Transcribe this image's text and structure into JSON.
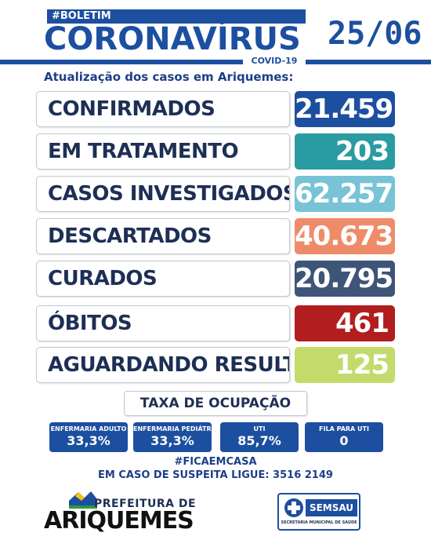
{
  "header": {
    "tag": "#BOLETIM",
    "title": "CORONAVÍRUS",
    "subtag": "COVID-19",
    "date": "25/06",
    "subtitle": "Atualização dos casos em Ariquemes:"
  },
  "stats": [
    {
      "label": "CONFIRMADOS",
      "value": "21.459",
      "color": "#1d4fa0"
    },
    {
      "label": "EM TRATAMENTO",
      "value": "203",
      "color": "#2b9ba2"
    },
    {
      "label": "CASOS INVESTIGADOS",
      "value": "62.257",
      "color": "#78c3d6"
    },
    {
      "label": "DESCARTADOS",
      "value": "40.673",
      "color": "#ee8c69"
    },
    {
      "label": "CURADOS",
      "value": "20.795",
      "color": "#3e5577"
    },
    {
      "label": "ÓBITOS",
      "value": "461",
      "color": "#b21d1d"
    },
    {
      "label": "AGUARDANDO RESULTADO",
      "value": "125",
      "color": "#c4db6b"
    }
  ],
  "occupancy": {
    "title": "TAXA DE OCUPAÇÃO",
    "items": [
      {
        "label": "ENFERMARIA ADULTO",
        "value": "33,3%"
      },
      {
        "label": "ENFERMARIA PEDIÁTRICA",
        "value": "33,3%"
      },
      {
        "label": "UTI",
        "value": "85,7%"
      },
      {
        "label": "FILA PARA UTI",
        "value": "0"
      }
    ]
  },
  "footer": {
    "hashtag": "#FICAEMCASA",
    "phone": "EM CASO DE SUSPEITA LIGUE: 3516 2149",
    "prefeitura_small": "PREFEITURA DE",
    "prefeitura_big": "ARIQUEMES",
    "semsau_name": "SEMSAU",
    "semsau_sub": "SECRETARIA MUNICIPAL DE SAÚDE"
  }
}
